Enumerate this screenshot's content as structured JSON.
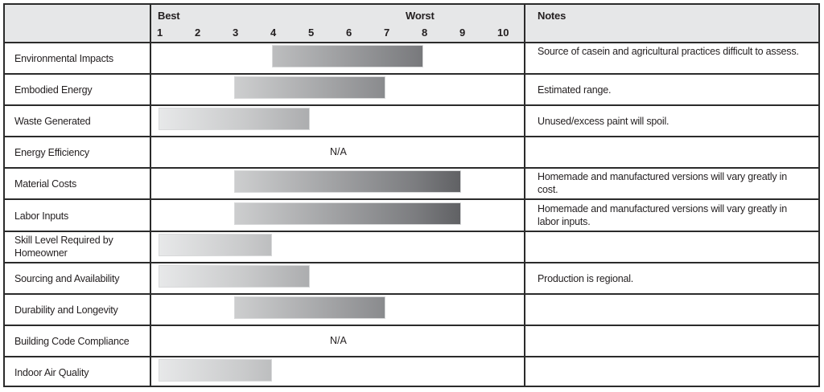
{
  "header": {
    "best_label": "Best",
    "worst_label": "Worst",
    "notes_label": "Notes",
    "scale_ticks": [
      "1",
      "2",
      "3",
      "4",
      "5",
      "6",
      "7",
      "8",
      "9",
      "10"
    ]
  },
  "rows": [
    {
      "label": "Environmental Impacts",
      "range": [
        4,
        8
      ],
      "na": "",
      "note": "Source of casein and agricultural practices difficult to assess."
    },
    {
      "label": "Embodied Energy",
      "range": [
        3,
        7
      ],
      "na": "",
      "note": "Estimated range."
    },
    {
      "label": "Waste Generated",
      "range": [
        1,
        5
      ],
      "na": "",
      "note": "Unused/excess paint will spoil."
    },
    {
      "label": "Energy Efficiency",
      "range": null,
      "na": "N/A",
      "note": ""
    },
    {
      "label": "Material Costs",
      "range": [
        3,
        9
      ],
      "na": "",
      "note": "Homemade and manufactured versions will vary greatly in cost."
    },
    {
      "label": "Labor Inputs",
      "range": [
        3,
        9
      ],
      "na": "",
      "note": "Homemade and manufactured versions will vary greatly in labor inputs."
    },
    {
      "label": "Skill Level Required by Homeowner",
      "range": [
        1,
        4
      ],
      "na": "",
      "note": ""
    },
    {
      "label": "Sourcing and Availability",
      "range": [
        1,
        5
      ],
      "na": "",
      "note": "Production is regional."
    },
    {
      "label": "Durability and Longevity",
      "range": [
        3,
        7
      ],
      "na": "",
      "note": ""
    },
    {
      "label": "Building Code Compliance",
      "range": null,
      "na": "N/A",
      "note": ""
    },
    {
      "label": "Indoor Air Quality",
      "range": [
        1,
        4
      ],
      "na": "",
      "note": ""
    }
  ],
  "colors": {
    "header_bg": "#e6e7e8",
    "border": "#2b2b2b",
    "gradient_light": "#e7e8e9",
    "gradient_dark": "#48494c"
  },
  "chart_data": {
    "type": "bar",
    "orientation": "horizontal-range",
    "title": "",
    "xlabel": "Best (1) to Worst (10)",
    "ylabel": "",
    "xlim": [
      1,
      10
    ],
    "x_ticks": [
      1,
      2,
      3,
      4,
      5,
      6,
      7,
      8,
      9,
      10
    ],
    "x_tick_annotations": {
      "1": "Best",
      "8": "Worst"
    },
    "categories": [
      "Environmental Impacts",
      "Embodied Energy",
      "Waste Generated",
      "Energy Efficiency",
      "Material Costs",
      "Labor Inputs",
      "Skill Level Required by Homeowner",
      "Sourcing and Availability",
      "Durability and Longevity",
      "Building Code Compliance",
      "Indoor Air Quality"
    ],
    "ranges": [
      [
        4,
        8
      ],
      [
        3,
        7
      ],
      [
        1,
        5
      ],
      null,
      [
        3,
        9
      ],
      [
        3,
        9
      ],
      [
        1,
        4
      ],
      [
        1,
        5
      ],
      [
        3,
        7
      ],
      null,
      [
        1,
        4
      ]
    ],
    "na_categories": [
      "Energy Efficiency",
      "Building Code Compliance"
    ],
    "notes_column": [
      "Source of casein and agricultural practices difficult to assess.",
      "Estimated range.",
      "Unused/excess paint will spoil.",
      "",
      "Homemade and manufactured versions will vary greatly in cost.",
      "Homemade and manufactured versions will vary greatly in labor inputs.",
      "",
      "Production is regional.",
      "",
      "",
      ""
    ],
    "grid": false,
    "legend": null
  }
}
